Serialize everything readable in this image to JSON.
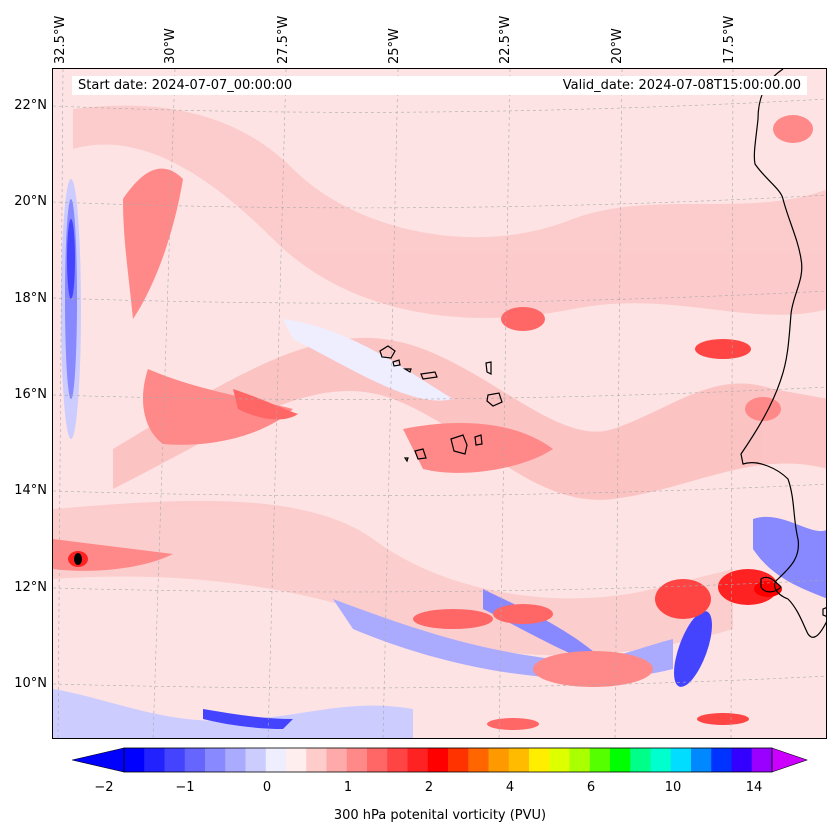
{
  "map": {
    "start_date": "Start date: 2024-07-07_00:00:00",
    "valid_date": "Valid_date: 2024-07-08T15:00:00.00",
    "lon_labels": [
      "32.5°W",
      "30°W",
      "27.5°W",
      "25°W",
      "22.5°W",
      "20°W",
      "17.5°W"
    ],
    "lat_labels": [
      "22°N",
      "20°N",
      "18°N",
      "16°N",
      "14°N",
      "12°N",
      "10°N"
    ],
    "extent": {
      "lon_min": -32.8,
      "lon_max": -15.6,
      "lat_min": 8.8,
      "lat_max": 22.8
    },
    "features": [
      "Cabo Verde islands",
      "West African coastline"
    ]
  },
  "colorbar": {
    "label": "300 hPa potenital vorticity (PVU)",
    "tick_labels": [
      "−2",
      "−1",
      "0",
      "1",
      "2",
      "4",
      "6",
      "10",
      "14"
    ],
    "colors": [
      "#0000ff",
      "#2222ff",
      "#4444ff",
      "#6666ff",
      "#8888ff",
      "#aaaaff",
      "#ccccff",
      "#eeeeff",
      "#ffeeee",
      "#ffcccc",
      "#ffaaaa",
      "#ff8888",
      "#ff6666",
      "#ff4444",
      "#ff2222",
      "#ff0000",
      "#ff3300",
      "#ff6600",
      "#ff9900",
      "#ffbb00",
      "#ffee00",
      "#ddff00",
      "#aaff00",
      "#55ff00",
      "#00ff00",
      "#00ff88",
      "#00ffcc",
      "#00ddff",
      "#0088ff",
      "#0033ff",
      "#3300ff",
      "#9900ff"
    ],
    "under_color": "#0000ff",
    "over_color": "#cc00ff"
  }
}
